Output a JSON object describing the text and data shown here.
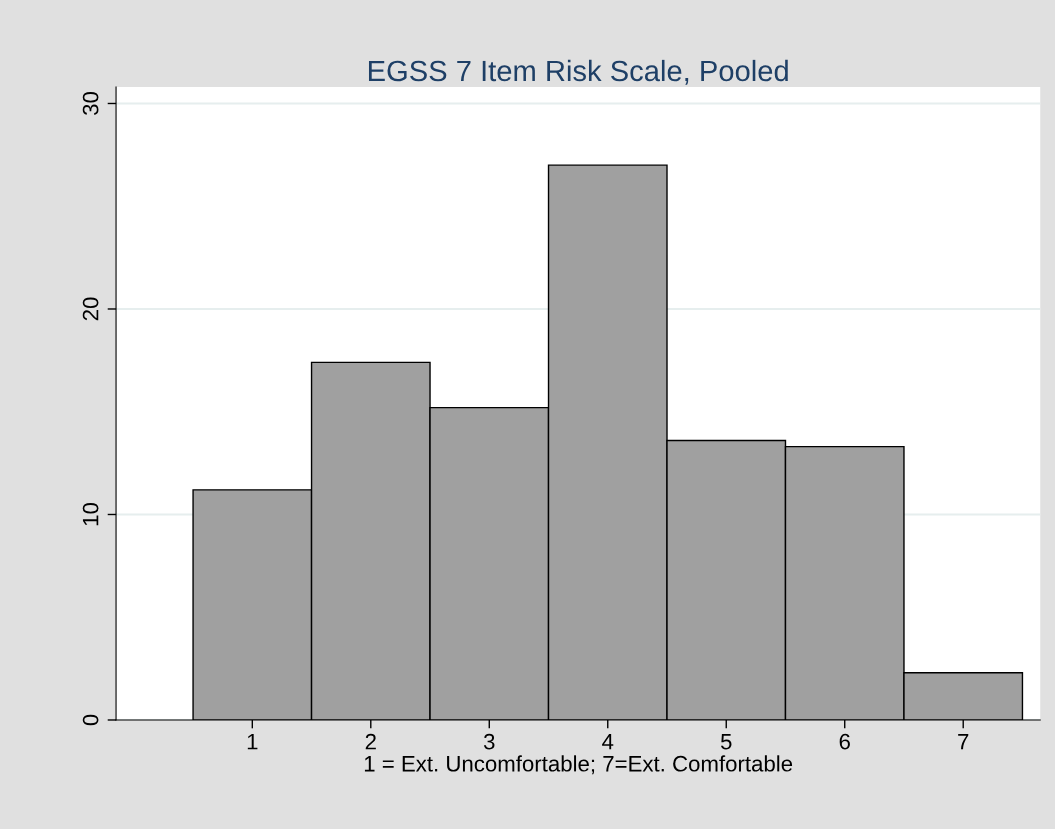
{
  "chart_data": {
    "type": "histogram",
    "title": "EGSS 7 Item Risk Scale, Pooled",
    "xlabel": "1 = Ext. Uncomfortable; 7=Ext. Comfortable",
    "bins": [
      0.5,
      1.5,
      2.5,
      3.5,
      4.5,
      5.5,
      6.5,
      7.5
    ],
    "values": [
      11.2,
      17.4,
      15.2,
      27.0,
      13.6,
      13.3,
      2.3
    ],
    "color": "#a0a0a0",
    "xlim": [
      -0.15,
      7.65
    ],
    "xticks": [
      1,
      2,
      3,
      4,
      5,
      6,
      7
    ],
    "ylim": [
      0,
      30.8
    ],
    "yticks": [
      0,
      10,
      20,
      30
    ],
    "grid": "y"
  }
}
